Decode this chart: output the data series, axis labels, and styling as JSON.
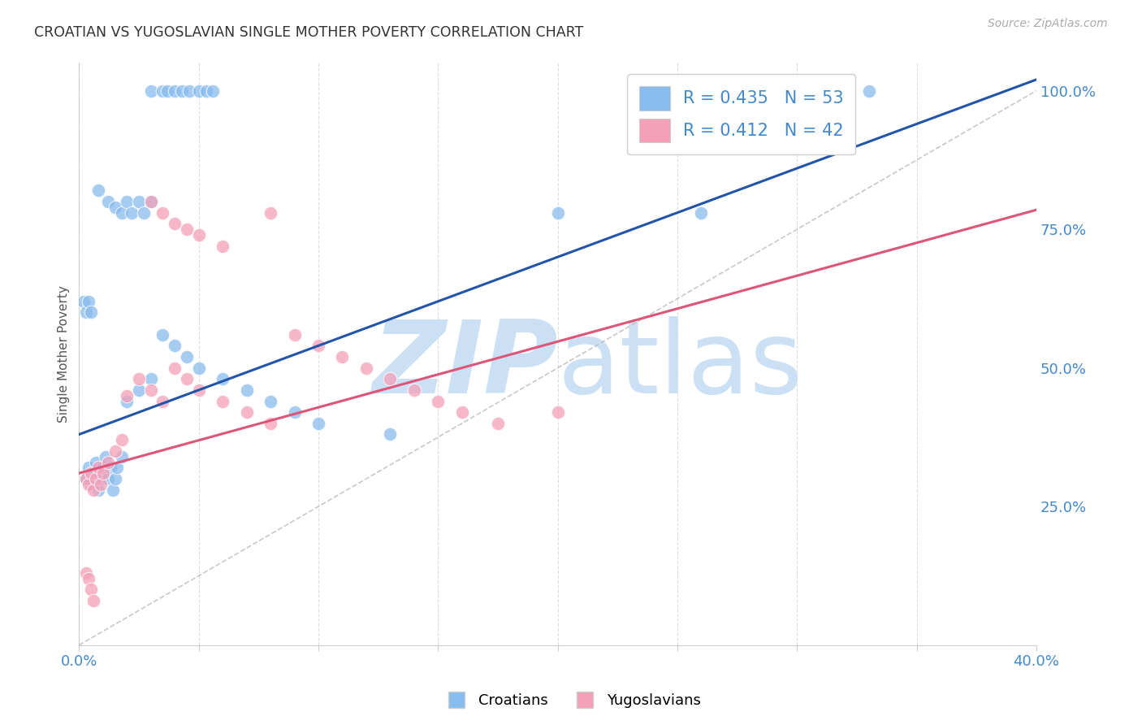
{
  "title": "CROATIAN VS YUGOSLAVIAN SINGLE MOTHER POVERTY CORRELATION CHART",
  "source": "Source: ZipAtlas.com",
  "ylabel": "Single Mother Poverty",
  "croatian_color": "#88bbee",
  "yugoslavian_color": "#f4a0b8",
  "croatian_line_color": "#2255aa",
  "yugoslavian_line_color": "#dd5577",
  "diagonal_line_color": "#bbbbbb",
  "watermark_zip": "ZIP",
  "watermark_atlas": "atlas",
  "watermark_color": "#cce0f5",
  "xmin": 0.0,
  "xmax": 0.4,
  "ymin": 0.0,
  "ymax": 1.05,
  "background_color": "#ffffff",
  "grid_color": "#dddddd",
  "title_color": "#333333",
  "tick_color": "#4488cc",
  "cr_R": "0.435",
  "cr_N": "53",
  "yu_R": "0.412",
  "yu_N": "42",
  "cr_line": [
    0.0,
    0.004,
    1.0
  ],
  "yu_line": [
    0.0,
    0.31,
    0.785
  ],
  "diag_line": [
    0.0,
    0.0,
    0.4,
    1.0
  ],
  "cr_x": [
    0.03,
    0.035,
    0.037,
    0.04,
    0.043,
    0.046,
    0.05,
    0.053,
    0.056,
    0.008,
    0.012,
    0.015,
    0.018,
    0.02,
    0.022,
    0.025,
    0.027,
    0.03,
    0.003,
    0.004,
    0.005,
    0.006,
    0.007,
    0.008,
    0.009,
    0.01,
    0.011,
    0.012,
    0.013,
    0.014,
    0.015,
    0.016,
    0.018,
    0.02,
    0.025,
    0.03,
    0.035,
    0.04,
    0.045,
    0.05,
    0.06,
    0.07,
    0.08,
    0.09,
    0.1,
    0.13,
    0.2,
    0.26,
    0.33,
    0.002,
    0.003,
    0.004,
    0.005
  ],
  "cr_y": [
    1.0,
    1.0,
    1.0,
    1.0,
    1.0,
    1.0,
    1.0,
    1.0,
    1.0,
    0.82,
    0.8,
    0.79,
    0.78,
    0.8,
    0.78,
    0.8,
    0.78,
    0.8,
    0.3,
    0.32,
    0.29,
    0.31,
    0.33,
    0.28,
    0.3,
    0.32,
    0.34,
    0.3,
    0.32,
    0.28,
    0.3,
    0.32,
    0.34,
    0.44,
    0.46,
    0.48,
    0.56,
    0.54,
    0.52,
    0.5,
    0.48,
    0.46,
    0.44,
    0.42,
    0.4,
    0.38,
    0.78,
    0.78,
    1.0,
    0.62,
    0.6,
    0.62,
    0.6
  ],
  "yu_x": [
    0.03,
    0.035,
    0.04,
    0.045,
    0.05,
    0.06,
    0.003,
    0.004,
    0.005,
    0.006,
    0.007,
    0.008,
    0.009,
    0.01,
    0.012,
    0.015,
    0.018,
    0.02,
    0.025,
    0.03,
    0.035,
    0.04,
    0.045,
    0.05,
    0.06,
    0.07,
    0.08,
    0.09,
    0.1,
    0.11,
    0.12,
    0.13,
    0.14,
    0.15,
    0.16,
    0.175,
    0.003,
    0.004,
    0.005,
    0.006,
    0.2,
    0.08
  ],
  "yu_y": [
    0.8,
    0.78,
    0.76,
    0.75,
    0.74,
    0.72,
    0.3,
    0.29,
    0.31,
    0.28,
    0.3,
    0.32,
    0.29,
    0.31,
    0.33,
    0.35,
    0.37,
    0.45,
    0.48,
    0.46,
    0.44,
    0.5,
    0.48,
    0.46,
    0.44,
    0.42,
    0.4,
    0.56,
    0.54,
    0.52,
    0.5,
    0.48,
    0.46,
    0.44,
    0.42,
    0.4,
    0.13,
    0.12,
    0.1,
    0.08,
    0.42,
    0.78
  ]
}
